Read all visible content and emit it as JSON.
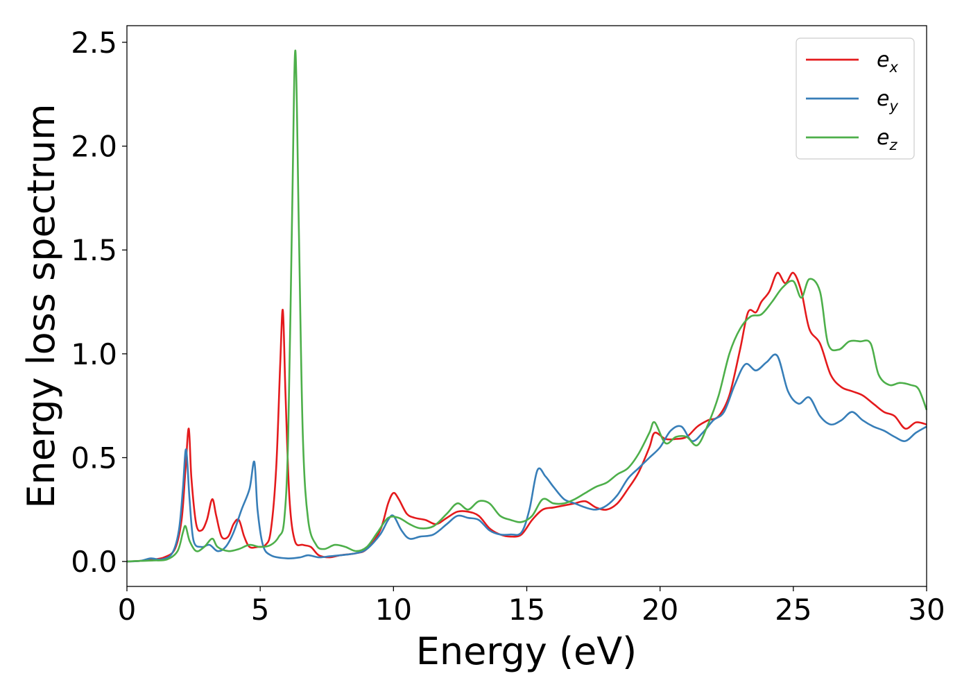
{
  "chart_data": {
    "type": "line",
    "title": "",
    "xlabel": "Energy (eV)",
    "ylabel": "Energy loss spectrum",
    "xlim": [
      0,
      30
    ],
    "ylim": [
      -0.12,
      2.58
    ],
    "x_ticks": [
      0,
      5,
      10,
      15,
      20,
      25,
      30
    ],
    "x_tick_labels": [
      "0",
      "5",
      "10",
      "15",
      "20",
      "25",
      "30"
    ],
    "y_ticks": [
      0.0,
      0.5,
      1.0,
      1.5,
      2.0,
      2.5
    ],
    "y_tick_labels": [
      "0.0",
      "0.5",
      "1.0",
      "1.5",
      "2.0",
      "2.5"
    ],
    "grid": false,
    "legend_position": "top-right",
    "series": [
      {
        "name": "e_x",
        "label_base": "e",
        "label_sub": "x",
        "color": "#e41a1c",
        "points": [
          [
            0,
            0
          ],
          [
            0.5,
            0.003
          ],
          [
            1.0,
            0.01
          ],
          [
            1.4,
            0.02
          ],
          [
            1.8,
            0.06
          ],
          [
            2.05,
            0.2
          ],
          [
            2.2,
            0.45
          ],
          [
            2.32,
            0.64
          ],
          [
            2.42,
            0.4
          ],
          [
            2.6,
            0.18
          ],
          [
            2.8,
            0.15
          ],
          [
            3.0,
            0.2
          ],
          [
            3.2,
            0.3
          ],
          [
            3.35,
            0.22
          ],
          [
            3.55,
            0.12
          ],
          [
            3.8,
            0.12
          ],
          [
            4.0,
            0.18
          ],
          [
            4.2,
            0.2
          ],
          [
            4.4,
            0.12
          ],
          [
            4.6,
            0.07
          ],
          [
            4.9,
            0.07
          ],
          [
            5.2,
            0.08
          ],
          [
            5.4,
            0.15
          ],
          [
            5.6,
            0.45
          ],
          [
            5.75,
            0.95
          ],
          [
            5.85,
            1.21
          ],
          [
            5.95,
            0.8
          ],
          [
            6.1,
            0.3
          ],
          [
            6.3,
            0.1
          ],
          [
            6.6,
            0.08
          ],
          [
            6.9,
            0.07
          ],
          [
            7.2,
            0.03
          ],
          [
            7.6,
            0.02
          ],
          [
            8.0,
            0.03
          ],
          [
            8.6,
            0.04
          ],
          [
            9.0,
            0.06
          ],
          [
            9.5,
            0.15
          ],
          [
            9.8,
            0.28
          ],
          [
            10.0,
            0.33
          ],
          [
            10.2,
            0.3
          ],
          [
            10.5,
            0.23
          ],
          [
            10.8,
            0.21
          ],
          [
            11.2,
            0.2
          ],
          [
            11.6,
            0.18
          ],
          [
            12.0,
            0.21
          ],
          [
            12.4,
            0.24
          ],
          [
            12.8,
            0.24
          ],
          [
            13.2,
            0.22
          ],
          [
            13.6,
            0.16
          ],
          [
            14.0,
            0.13
          ],
          [
            14.4,
            0.12
          ],
          [
            14.8,
            0.13
          ],
          [
            15.2,
            0.2
          ],
          [
            15.6,
            0.25
          ],
          [
            16.0,
            0.26
          ],
          [
            16.4,
            0.27
          ],
          [
            16.8,
            0.28
          ],
          [
            17.2,
            0.29
          ],
          [
            17.6,
            0.26
          ],
          [
            18.0,
            0.25
          ],
          [
            18.4,
            0.28
          ],
          [
            18.8,
            0.35
          ],
          [
            19.2,
            0.43
          ],
          [
            19.6,
            0.55
          ],
          [
            19.8,
            0.62
          ],
          [
            20.2,
            0.59
          ],
          [
            20.6,
            0.59
          ],
          [
            21.0,
            0.6
          ],
          [
            21.4,
            0.65
          ],
          [
            21.8,
            0.68
          ],
          [
            22.2,
            0.7
          ],
          [
            22.6,
            0.8
          ],
          [
            23.0,
            1.02
          ],
          [
            23.3,
            1.2
          ],
          [
            23.6,
            1.2
          ],
          [
            23.8,
            1.25
          ],
          [
            24.1,
            1.3
          ],
          [
            24.4,
            1.39
          ],
          [
            24.7,
            1.34
          ],
          [
            25.0,
            1.39
          ],
          [
            25.3,
            1.3
          ],
          [
            25.6,
            1.12
          ],
          [
            26.0,
            1.05
          ],
          [
            26.4,
            0.9
          ],
          [
            26.8,
            0.84
          ],
          [
            27.2,
            0.82
          ],
          [
            27.6,
            0.8
          ],
          [
            28.0,
            0.76
          ],
          [
            28.4,
            0.72
          ],
          [
            28.8,
            0.7
          ],
          [
            29.2,
            0.64
          ],
          [
            29.6,
            0.67
          ],
          [
            30.0,
            0.66
          ]
        ]
      },
      {
        "name": "e_y",
        "label_base": "e",
        "label_sub": "y",
        "color": "#377eb8",
        "points": [
          [
            0,
            0
          ],
          [
            0.5,
            0.003
          ],
          [
            0.9,
            0.015
          ],
          [
            1.3,
            0.01
          ],
          [
            1.7,
            0.04
          ],
          [
            1.95,
            0.15
          ],
          [
            2.1,
            0.35
          ],
          [
            2.22,
            0.54
          ],
          [
            2.35,
            0.3
          ],
          [
            2.5,
            0.1
          ],
          [
            2.8,
            0.07
          ],
          [
            3.1,
            0.08
          ],
          [
            3.4,
            0.05
          ],
          [
            3.7,
            0.07
          ],
          [
            4.0,
            0.14
          ],
          [
            4.3,
            0.25
          ],
          [
            4.6,
            0.35
          ],
          [
            4.78,
            0.48
          ],
          [
            4.9,
            0.25
          ],
          [
            5.1,
            0.08
          ],
          [
            5.4,
            0.03
          ],
          [
            6.0,
            0.015
          ],
          [
            6.5,
            0.02
          ],
          [
            6.8,
            0.03
          ],
          [
            7.2,
            0.02
          ],
          [
            7.6,
            0.025
          ],
          [
            8.0,
            0.03
          ],
          [
            8.6,
            0.04
          ],
          [
            9.0,
            0.06
          ],
          [
            9.5,
            0.13
          ],
          [
            9.8,
            0.2
          ],
          [
            10.0,
            0.22
          ],
          [
            10.3,
            0.15
          ],
          [
            10.6,
            0.11
          ],
          [
            11.0,
            0.12
          ],
          [
            11.5,
            0.13
          ],
          [
            12.0,
            0.18
          ],
          [
            12.4,
            0.22
          ],
          [
            12.8,
            0.21
          ],
          [
            13.2,
            0.2
          ],
          [
            13.6,
            0.15
          ],
          [
            14.0,
            0.13
          ],
          [
            14.4,
            0.13
          ],
          [
            14.8,
            0.14
          ],
          [
            15.1,
            0.25
          ],
          [
            15.4,
            0.44
          ],
          [
            15.7,
            0.41
          ],
          [
            16.0,
            0.36
          ],
          [
            16.4,
            0.3
          ],
          [
            16.8,
            0.28
          ],
          [
            17.2,
            0.26
          ],
          [
            17.6,
            0.25
          ],
          [
            18.0,
            0.27
          ],
          [
            18.4,
            0.32
          ],
          [
            18.8,
            0.4
          ],
          [
            19.2,
            0.45
          ],
          [
            19.6,
            0.5
          ],
          [
            20.0,
            0.55
          ],
          [
            20.4,
            0.63
          ],
          [
            20.8,
            0.65
          ],
          [
            21.2,
            0.58
          ],
          [
            21.6,
            0.62
          ],
          [
            22.0,
            0.68
          ],
          [
            22.4,
            0.72
          ],
          [
            22.8,
            0.85
          ],
          [
            23.2,
            0.95
          ],
          [
            23.6,
            0.92
          ],
          [
            24.0,
            0.96
          ],
          [
            24.4,
            0.99
          ],
          [
            24.8,
            0.82
          ],
          [
            25.2,
            0.76
          ],
          [
            25.6,
            0.79
          ],
          [
            26.0,
            0.7
          ],
          [
            26.4,
            0.66
          ],
          [
            26.8,
            0.68
          ],
          [
            27.2,
            0.72
          ],
          [
            27.6,
            0.68
          ],
          [
            28.0,
            0.65
          ],
          [
            28.4,
            0.63
          ],
          [
            28.8,
            0.6
          ],
          [
            29.2,
            0.58
          ],
          [
            29.6,
            0.62
          ],
          [
            30.0,
            0.65
          ]
        ]
      },
      {
        "name": "e_z",
        "label_base": "e",
        "label_sub": "z",
        "color": "#4daf4a",
        "points": [
          [
            0,
            0
          ],
          [
            0.5,
            0.003
          ],
          [
            1.0,
            0.005
          ],
          [
            1.5,
            0.01
          ],
          [
            1.9,
            0.05
          ],
          [
            2.1,
            0.14
          ],
          [
            2.2,
            0.17
          ],
          [
            2.35,
            0.1
          ],
          [
            2.6,
            0.05
          ],
          [
            2.9,
            0.07
          ],
          [
            3.2,
            0.11
          ],
          [
            3.4,
            0.07
          ],
          [
            3.8,
            0.05
          ],
          [
            4.2,
            0.06
          ],
          [
            4.6,
            0.08
          ],
          [
            5.0,
            0.07
          ],
          [
            5.4,
            0.08
          ],
          [
            5.7,
            0.12
          ],
          [
            5.9,
            0.2
          ],
          [
            6.05,
            0.6
          ],
          [
            6.2,
            1.7
          ],
          [
            6.32,
            2.46
          ],
          [
            6.45,
            1.6
          ],
          [
            6.6,
            0.6
          ],
          [
            6.8,
            0.2
          ],
          [
            7.1,
            0.08
          ],
          [
            7.4,
            0.06
          ],
          [
            7.8,
            0.08
          ],
          [
            8.2,
            0.07
          ],
          [
            8.6,
            0.05
          ],
          [
            9.0,
            0.07
          ],
          [
            9.4,
            0.14
          ],
          [
            9.8,
            0.21
          ],
          [
            10.2,
            0.21
          ],
          [
            10.6,
            0.18
          ],
          [
            11.0,
            0.16
          ],
          [
            11.5,
            0.17
          ],
          [
            12.0,
            0.23
          ],
          [
            12.4,
            0.28
          ],
          [
            12.8,
            0.25
          ],
          [
            13.2,
            0.29
          ],
          [
            13.6,
            0.28
          ],
          [
            14.0,
            0.22
          ],
          [
            14.4,
            0.2
          ],
          [
            14.8,
            0.19
          ],
          [
            15.2,
            0.22
          ],
          [
            15.6,
            0.3
          ],
          [
            16.0,
            0.28
          ],
          [
            16.4,
            0.28
          ],
          [
            16.8,
            0.3
          ],
          [
            17.2,
            0.33
          ],
          [
            17.6,
            0.36
          ],
          [
            18.0,
            0.38
          ],
          [
            18.4,
            0.42
          ],
          [
            18.8,
            0.45
          ],
          [
            19.2,
            0.52
          ],
          [
            19.6,
            0.62
          ],
          [
            19.8,
            0.67
          ],
          [
            20.2,
            0.57
          ],
          [
            20.6,
            0.6
          ],
          [
            21.0,
            0.6
          ],
          [
            21.4,
            0.56
          ],
          [
            21.8,
            0.66
          ],
          [
            22.2,
            0.8
          ],
          [
            22.6,
            1.0
          ],
          [
            23.0,
            1.12
          ],
          [
            23.4,
            1.18
          ],
          [
            23.8,
            1.19
          ],
          [
            24.2,
            1.25
          ],
          [
            24.6,
            1.32
          ],
          [
            25.0,
            1.35
          ],
          [
            25.3,
            1.27
          ],
          [
            25.6,
            1.36
          ],
          [
            26.0,
            1.3
          ],
          [
            26.3,
            1.05
          ],
          [
            26.7,
            1.02
          ],
          [
            27.1,
            1.06
          ],
          [
            27.5,
            1.06
          ],
          [
            27.9,
            1.05
          ],
          [
            28.2,
            0.9
          ],
          [
            28.6,
            0.85
          ],
          [
            29.0,
            0.86
          ],
          [
            29.4,
            0.85
          ],
          [
            29.7,
            0.83
          ],
          [
            30.0,
            0.73
          ]
        ]
      }
    ]
  }
}
